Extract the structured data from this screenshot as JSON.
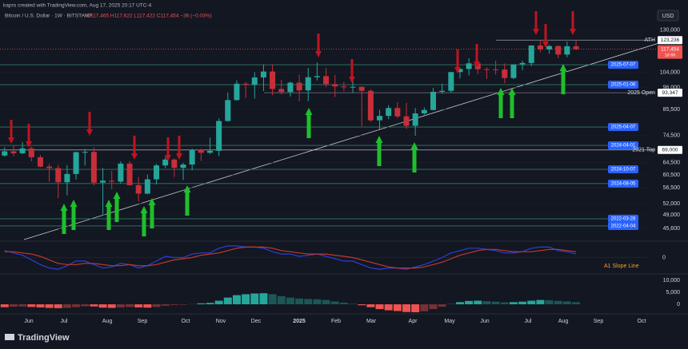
{
  "header": {
    "credit": "kapro created with TradingView.com, Aug 17, 2025 20:17 UTC-4",
    "ohlc": "O117,465 H117,622 L117,422 C117,454 −36 (−0.03%)",
    "currency": "USD",
    "brand": "TradingView"
  },
  "chart_data": [
    {
      "type": "candlestick",
      "title": "Bitcoin / U.S. Dollar · 1W · BITSTAMP",
      "x_labels": [
        "Jun",
        "Jul",
        "Aug",
        "Sep",
        "Oct",
        "Nov",
        "Dec",
        "2025",
        "Feb",
        "Mar",
        "Apr",
        "May",
        "Jun",
        "Jul",
        "Aug",
        "Sep",
        "Oct"
      ],
      "open": [
        67000,
        68500,
        67800,
        69600,
        66400,
        63200,
        62700,
        58200,
        60800,
        68200,
        68300,
        58100,
        58700,
        58400,
        64200,
        57300,
        54800,
        59100,
        63600,
        65600,
        62800,
        63900,
        69000,
        68000,
        68700,
        80400,
        89800,
        97900,
        97300,
        101200,
        104400,
        95200,
        93700,
        98400,
        94500,
        101300,
        101900,
        97700,
        96500,
        96100,
        96300,
        94300,
        80700,
        82600,
        86100,
        82400,
        78400,
        83700,
        85200,
        93800,
        94300,
        104100,
        105800,
        109000,
        105700,
        105600,
        105500,
        100900,
        108400,
        109200,
        119800,
        117300,
        119400,
        114200,
        119300
      ],
      "high": [
        70000,
        70600,
        71900,
        70200,
        67200,
        64100,
        63800,
        63700,
        68400,
        69400,
        70000,
        62700,
        61800,
        65000,
        65000,
        59800,
        60600,
        64100,
        66500,
        66000,
        64500,
        69500,
        69500,
        73600,
        81500,
        93500,
        99600,
        98800,
        104000,
        108300,
        108400,
        99900,
        99000,
        102700,
        106400,
        109600,
        106500,
        102500,
        98800,
        99500,
        96500,
        95000,
        85300,
        87400,
        88800,
        88500,
        86100,
        86400,
        95800,
        97900,
        104100,
        106700,
        112000,
        110700,
        106800,
        110600,
        108900,
        108500,
        110600,
        119900,
        123200,
        120200,
        119800,
        122300,
        123100
      ],
      "low": [
        66600,
        66700,
        67500,
        65000,
        63000,
        58400,
        53500,
        54300,
        59000,
        63500,
        57200,
        49100,
        56100,
        57800,
        57200,
        52600,
        54600,
        57500,
        62700,
        59800,
        58900,
        62000,
        65100,
        67500,
        66800,
        80200,
        89500,
        90800,
        90500,
        94200,
        92200,
        92500,
        91500,
        89200,
        89300,
        99600,
        96200,
        91200,
        94100,
        93400,
        78200,
        80000,
        76600,
        81200,
        81600,
        77100,
        74400,
        83100,
        85100,
        92800,
        93400,
        100700,
        102300,
        103000,
        100400,
        102700,
        98200,
        100300,
        105200,
        107500,
        115700,
        114700,
        112000,
        112600,
        116900
      ],
      "close": [
        68500,
        67800,
        69600,
        66400,
        63200,
        62700,
        58200,
        60800,
        68200,
        68300,
        58100,
        58700,
        58400,
        64200,
        57300,
        54800,
        59100,
        63600,
        65600,
        62800,
        63900,
        69000,
        68000,
        68700,
        80400,
        89800,
        97900,
        97300,
        101200,
        104400,
        95200,
        93700,
        98400,
        94500,
        101300,
        101900,
        97700,
        96500,
        96100,
        96300,
        94300,
        80700,
        82600,
        86100,
        82400,
        78400,
        83700,
        85200,
        93800,
        94300,
        104100,
        105800,
        109000,
        105700,
        105600,
        105500,
        100900,
        108400,
        109200,
        119800,
        117300,
        119400,
        114200,
        119300,
        117454
      ],
      "up_color": "#26a69a",
      "down_color": "#c62f3a",
      "log_scale": true,
      "grid": true,
      "ylim": [
        43000,
        146000
      ],
      "yticks": [
        {
          "value": 130000,
          "label": "130,000"
        },
        {
          "value": 104000,
          "label": "104,000"
        },
        {
          "value": 96000,
          "label": "96,000"
        },
        {
          "value": 85500,
          "label": "85,500"
        },
        {
          "value": 74500,
          "label": "74,500"
        },
        {
          "value": 64500,
          "label": "64,500"
        },
        {
          "value": 60500,
          "label": "60,500"
        },
        {
          "value": 56500,
          "label": "56,500"
        },
        {
          "value": 52000,
          "label": "52,000"
        },
        {
          "value": 49000,
          "label": "49,000"
        },
        {
          "value": 45600,
          "label": "45,600"
        }
      ],
      "last_price": {
        "value": 117454,
        "label": "117,454",
        "countdown": "1d 6h"
      },
      "annotations": [
        {
          "name": "ATH",
          "value": 123236,
          "label": "123,236"
        },
        {
          "name": "2025 Open",
          "value": 93347,
          "label": "93,347"
        },
        {
          "name": "2021 Top",
          "value": 69000,
          "label": "69,000"
        }
      ],
      "levels": [
        {
          "label": "2025-07-07",
          "value": 108200
        },
        {
          "label": "2025-01-06",
          "value": 97400
        },
        {
          "label": "2025-04-07",
          "value": 77900
        },
        {
          "label": "2024-04-01",
          "value": 70700
        },
        {
          "label": "2024-10-07",
          "value": 62300
        },
        {
          "label": "2024-08-05",
          "value": 57800
        },
        {
          "label": "2022-03-28",
          "value": 48000
        },
        {
          "label": "2022-04-04",
          "value": 46200
        }
      ]
    },
    {
      "type": "line",
      "legend_label": "A1 Slope Line",
      "ylim": [
        -1.2,
        1.2
      ],
      "yticks": [
        0
      ],
      "series": [
        {
          "color": "#2b3fd6",
          "values": [
            0.6,
            0.4,
            0.2,
            -0.2,
            -0.6,
            -0.9,
            -1.0,
            -0.7,
            -0.3,
            -0.3,
            -0.6,
            -0.9,
            -0.8,
            -0.5,
            -0.6,
            -0.9,
            -0.7,
            -0.3,
            0.1,
            0.0,
            0.0,
            0.3,
            0.4,
            0.4,
            0.8,
            1.0,
            1.0,
            0.9,
            0.9,
            0.8,
            0.5,
            0.3,
            0.3,
            0.1,
            0.2,
            0.3,
            0.1,
            -0.1,
            -0.3,
            -0.3,
            -0.6,
            -0.9,
            -1.0,
            -0.9,
            -0.9,
            -1.0,
            -0.8,
            -0.6,
            -0.3,
            0.0,
            0.4,
            0.6,
            0.8,
            0.8,
            0.7,
            0.6,
            0.4,
            0.4,
            0.5,
            0.8,
            0.9,
            0.9,
            0.6,
            0.5,
            0.3
          ]
        },
        {
          "color": "#c0392b",
          "values": [
            0.5,
            0.5,
            0.4,
            0.3,
            0.1,
            -0.2,
            -0.5,
            -0.6,
            -0.6,
            -0.5,
            -0.5,
            -0.6,
            -0.7,
            -0.7,
            -0.6,
            -0.7,
            -0.7,
            -0.6,
            -0.4,
            -0.2,
            -0.1,
            0.0,
            0.2,
            0.3,
            0.4,
            0.6,
            0.8,
            0.9,
            0.9,
            0.9,
            0.8,
            0.6,
            0.5,
            0.4,
            0.3,
            0.3,
            0.3,
            0.2,
            0.1,
            0.0,
            -0.2,
            -0.4,
            -0.6,
            -0.8,
            -0.9,
            -0.9,
            -0.9,
            -0.8,
            -0.6,
            -0.4,
            -0.1,
            0.2,
            0.4,
            0.6,
            0.7,
            0.7,
            0.6,
            0.5,
            0.5,
            0.5,
            0.6,
            0.7,
            0.7,
            0.6,
            0.5
          ]
        }
      ]
    },
    {
      "type": "histogram_pane",
      "ylim": [
        -6300,
        12300
      ],
      "yticks": [
        {
          "value": 10000,
          "label": "10,000"
        },
        {
          "value": 5000,
          "label": "5,000"
        },
        0
      ],
      "pos_color": "#26a69a",
      "neg_color": "#ef5350",
      "values": [
        -1200,
        -1000,
        -900,
        -1100,
        -1300,
        -1500,
        -1600,
        -1500,
        -1200,
        -800,
        -900,
        -1400,
        -1500,
        -1300,
        -1100,
        -1300,
        -1400,
        -1100,
        -600,
        -300,
        -200,
        100,
        400,
        600,
        1500,
        2800,
        3800,
        4200,
        4500,
        4600,
        4200,
        3400,
        2800,
        2400,
        2200,
        2100,
        1800,
        1200,
        700,
        200,
        -400,
        -1200,
        -2000,
        -2500,
        -2800,
        -3200,
        -3300,
        -2900,
        -2000,
        -1000,
        200,
        900,
        1400,
        1500,
        1300,
        1100,
        800,
        900,
        1100,
        1500,
        1800,
        1700,
        1400,
        1200,
        900
      ]
    }
  ]
}
